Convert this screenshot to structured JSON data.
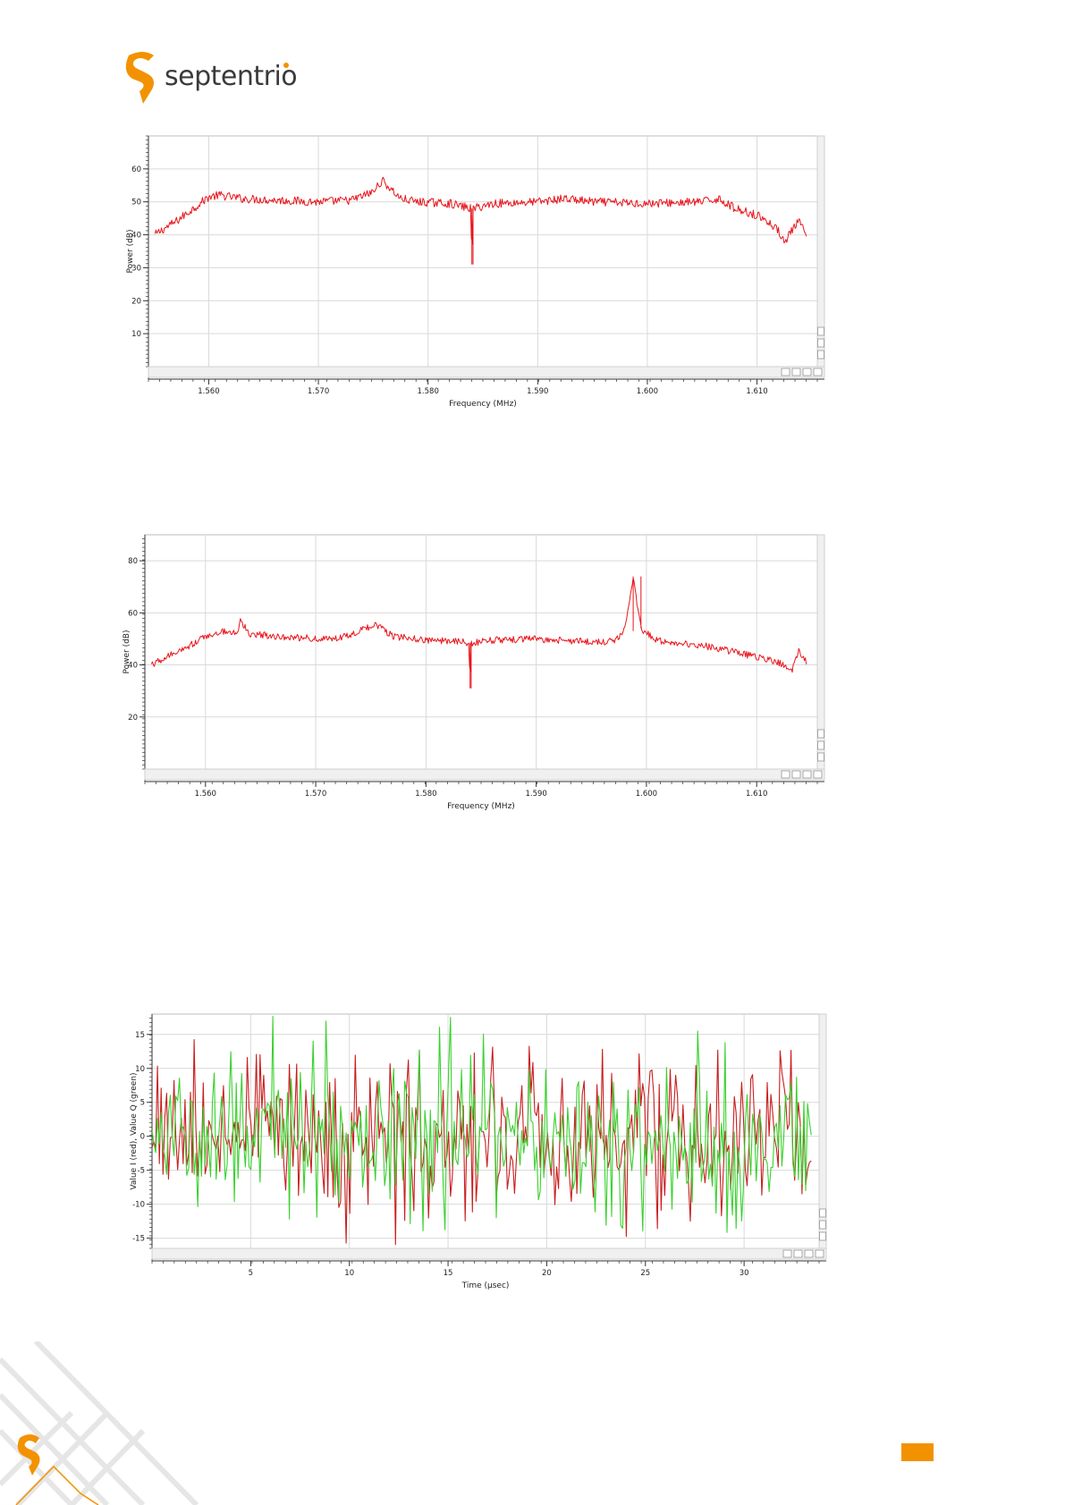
{
  "logo": {
    "word": "septentrio"
  },
  "colors": {
    "brand": "#f39200",
    "series_red": "#e8141b",
    "series_green": "#39d12e",
    "grid": "#d9d9d9"
  },
  "chart_data": [
    {
      "type": "line",
      "title": "",
      "xlabel": "Frequency (MHz)",
      "ylabel": "Power (dB)",
      "xlim": [
        1.5545,
        1.6155
      ],
      "ylim": [
        0,
        70
      ],
      "xticks": [
        1.56,
        1.57,
        1.58,
        1.59,
        1.6,
        1.61
      ],
      "xtick_labels": [
        "1.560",
        "1.570",
        "1.580",
        "1.590",
        "1.600",
        "1.610"
      ],
      "yticks": [
        10,
        20,
        30,
        40,
        50,
        60
      ],
      "ytick_labels": [
        "10",
        "20",
        "30",
        "40",
        "50",
        "60"
      ],
      "grid": true,
      "series": [
        {
          "color": "#e8141b",
          "x": [
            1.5551,
            1.556,
            1.557,
            1.558,
            1.559,
            1.56,
            1.561,
            1.563,
            1.566,
            1.57,
            1.573,
            1.575,
            1.5758,
            1.5775,
            1.579,
            1.582,
            1.5839,
            1.584,
            1.5841,
            1.586,
            1.59,
            1.5925,
            1.595,
            1.6,
            1.605,
            1.6065,
            1.608,
            1.61,
            1.611,
            1.612,
            1.6126,
            1.6133,
            1.6138,
            1.6145
          ],
          "y": [
            40,
            42,
            44,
            46.5,
            49,
            51.5,
            52,
            51,
            50.5,
            50,
            50.5,
            53,
            56.5,
            51,
            50,
            49.5,
            48,
            31,
            48,
            49.5,
            50,
            51,
            50,
            49.5,
            50,
            51,
            48,
            46,
            44,
            41,
            38,
            42,
            44,
            40
          ]
        }
      ]
    },
    {
      "type": "line",
      "title": "",
      "xlabel": "Frequency (MHz)",
      "ylabel": "Power (dB)",
      "xlim": [
        1.5545,
        1.6155
      ],
      "ylim": [
        0,
        90
      ],
      "xticks": [
        1.56,
        1.57,
        1.58,
        1.59,
        1.6,
        1.61
      ],
      "xtick_labels": [
        "1.560",
        "1.570",
        "1.580",
        "1.590",
        "1.600",
        "1.610"
      ],
      "yticks": [
        20,
        40,
        60,
        80
      ],
      "ytick_labels": [
        "20",
        "40",
        "60",
        "80"
      ],
      "grid": true,
      "series": [
        {
          "color": "#e8141b",
          "x": [
            1.5551,
            1.556,
            1.558,
            1.56,
            1.5615,
            1.5628,
            1.5632,
            1.564,
            1.568,
            1.572,
            1.5755,
            1.577,
            1.58,
            1.583,
            1.5839,
            1.584,
            1.5841,
            1.586,
            1.59,
            1.594,
            1.597,
            1.598,
            1.5988,
            1.5995,
            1.601,
            1.605,
            1.608,
            1.611,
            1.6125,
            1.6132,
            1.6138,
            1.6145
          ],
          "y": [
            40,
            42,
            46,
            51,
            53,
            52,
            57,
            52,
            50.5,
            50,
            55.5,
            51,
            49.5,
            49,
            48.5,
            31,
            48.5,
            49.5,
            50,
            49,
            49,
            53,
            74,
            54,
            49.5,
            47.5,
            45,
            42,
            40,
            38,
            46,
            41
          ]
        }
      ]
    },
    {
      "type": "line",
      "title": "",
      "xlabel": "Time (µsec)",
      "ylabel": "Value I (red), Value Q (green)",
      "xlim": [
        0,
        33.8
      ],
      "ylim": [
        -16.5,
        18
      ],
      "xticks": [
        5,
        10,
        15,
        20,
        25,
        30
      ],
      "xtick_labels": [
        "5",
        "10",
        "15",
        "20",
        "25",
        "30"
      ],
      "yticks": [
        -15,
        -10,
        -5,
        0,
        5,
        10,
        15
      ],
      "ytick_labels": [
        "-15",
        "-10",
        "-5",
        "0",
        "5",
        "10",
        "15"
      ],
      "grid": true,
      "series": [
        {
          "color": "#c81e1e",
          "description_visible": "I",
          "x_range": [
            0,
            33.4
          ],
          "points": 360,
          "amplitude": 5,
          "peak_min": -16,
          "peak_max": 14
        },
        {
          "color": "#39d12e",
          "description_visible": "Q",
          "x_range": [
            0,
            33.4
          ],
          "points": 360,
          "amplitude": 5,
          "peak_min": -15,
          "peak_max": 18
        }
      ]
    }
  ]
}
